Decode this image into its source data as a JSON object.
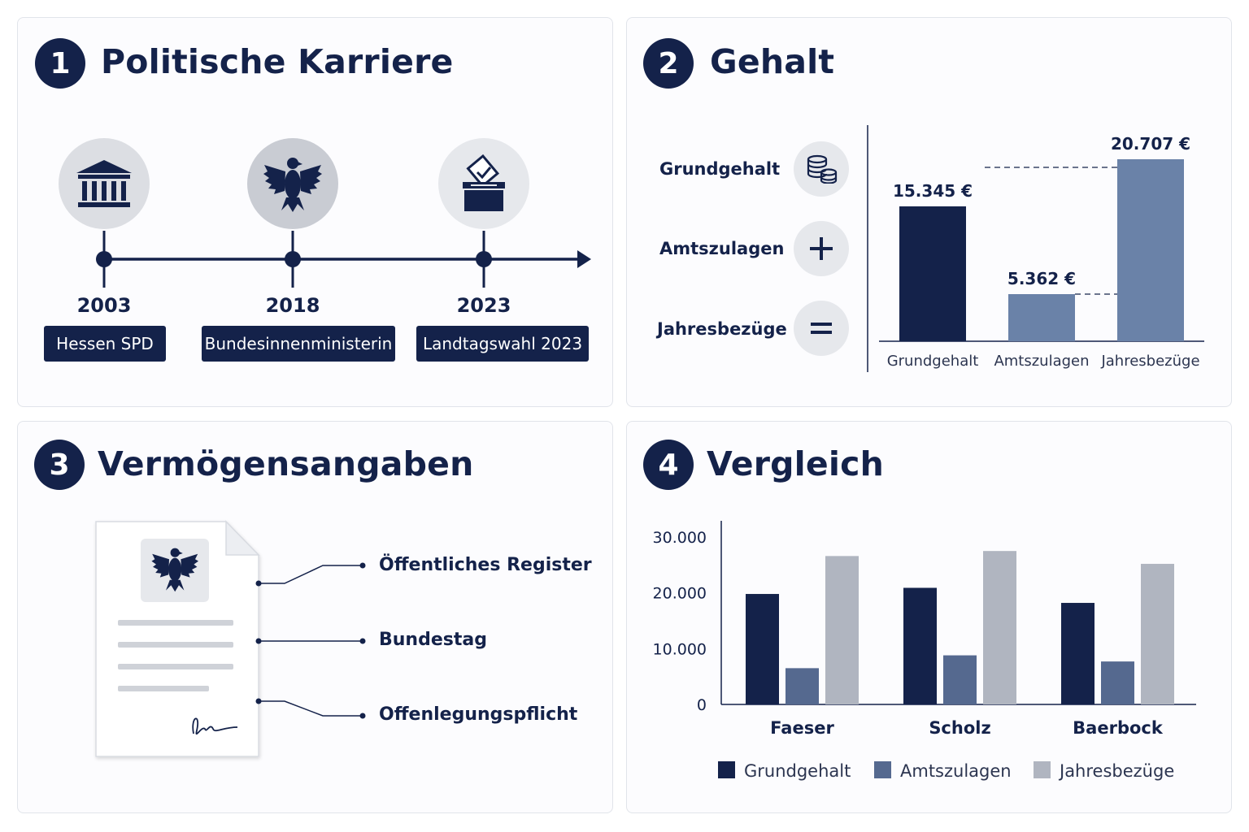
{
  "colors": {
    "navy": "#14224a",
    "mid_blue": "#6a82a8",
    "steel": "#55698f",
    "light_gray": "#b0b5c0",
    "circle_bg": "#dcdee3"
  },
  "card1": {
    "badge": "1",
    "title": "Politische Karriere",
    "milestones": [
      {
        "year": "2003",
        "label": "Hessen SPD",
        "icon": "parliament-building-icon"
      },
      {
        "year": "2018",
        "label": "Bundesinnenministerin",
        "icon": "federal-eagle-icon"
      },
      {
        "year": "2023",
        "label": "Landtagswahl 2023",
        "icon": "ballot-box-icon"
      }
    ]
  },
  "card2": {
    "badge": "2",
    "title": "Gehalt",
    "rows": [
      {
        "label": "Grundgehalt",
        "icon": "coins-icon"
      },
      {
        "label": "Amtszulagen",
        "icon": "plus-icon"
      },
      {
        "label": "Jahresbezüge",
        "icon": "equals-icon"
      }
    ]
  },
  "card3": {
    "badge": "3",
    "title": "Vermögensangaben",
    "document_icon": "official-document-icon",
    "callouts": [
      "Öffentliches Register",
      "Bundestag",
      "Offenlegungspflicht"
    ]
  },
  "card4": {
    "badge": "4",
    "title": "Vergleich"
  },
  "chart_data": [
    {
      "type": "bar",
      "categories": [
        "Grundgehalt",
        "Amtszulagen",
        "Jahresbezüge"
      ],
      "values": [
        15345,
        5362,
        20707
      ],
      "value_labels": [
        "15.345 €",
        "5.362 €",
        "20.707 €"
      ],
      "colors": [
        "#14224a",
        "#6a82a8",
        "#6a82a8"
      ],
      "grid": false
    },
    {
      "type": "bar",
      "categories": [
        "Faeser",
        "Scholz",
        "Baerbock"
      ],
      "series": [
        {
          "name": "Grundgehalt",
          "color": "#14224a",
          "values": [
            19800,
            20900,
            18200
          ]
        },
        {
          "name": "Amtszulagen",
          "color": "#55698f",
          "values": [
            6500,
            8800,
            7700
          ]
        },
        {
          "name": "Jahresbezüge",
          "color": "#b0b5c0",
          "values": [
            26600,
            27500,
            25200
          ]
        }
      ],
      "y_ticks": [
        "0",
        "10.000",
        "20.000",
        "30.000"
      ],
      "ylim": [
        0,
        30000
      ],
      "legend_position": "bottom",
      "grid": false
    }
  ]
}
